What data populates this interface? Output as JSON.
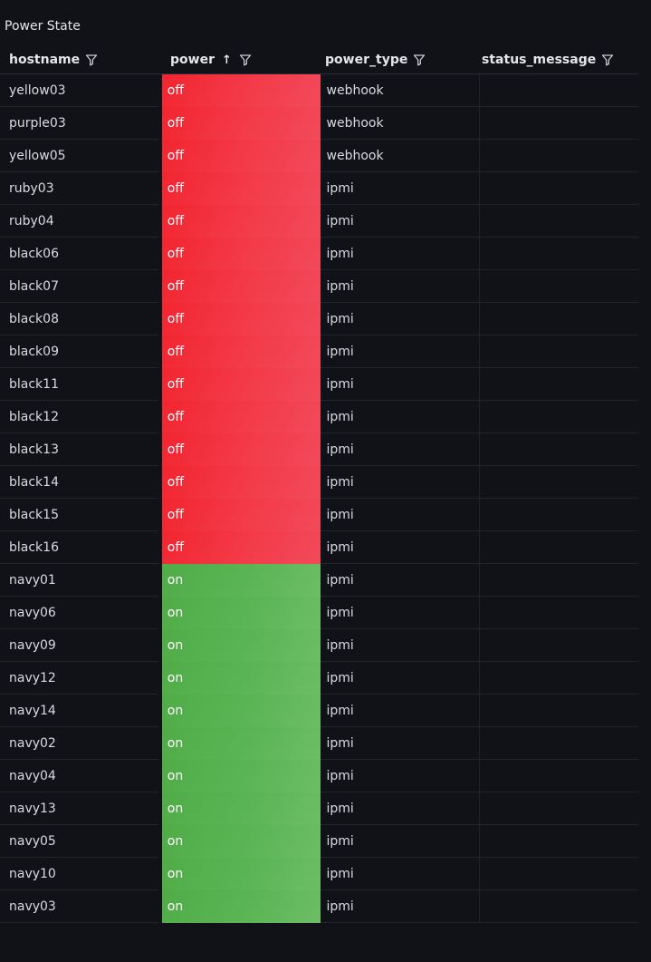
{
  "panel": {
    "title": "Power State"
  },
  "columns": [
    {
      "label": "hostname",
      "sort": ""
    },
    {
      "label": "power",
      "sort": "↑"
    },
    {
      "label": "power_type",
      "sort": ""
    },
    {
      "label": "status_message",
      "sort": ""
    }
  ],
  "colors": {
    "off": "#f2252f",
    "on": "#5bb555",
    "background": "#111217"
  },
  "rows": [
    {
      "hostname": "yellow03",
      "power": "off",
      "power_type": "webhook",
      "status_message": ""
    },
    {
      "hostname": "purple03",
      "power": "off",
      "power_type": "webhook",
      "status_message": ""
    },
    {
      "hostname": "yellow05",
      "power": "off",
      "power_type": "webhook",
      "status_message": ""
    },
    {
      "hostname": "ruby03",
      "power": "off",
      "power_type": "ipmi",
      "status_message": ""
    },
    {
      "hostname": "ruby04",
      "power": "off",
      "power_type": "ipmi",
      "status_message": ""
    },
    {
      "hostname": "black06",
      "power": "off",
      "power_type": "ipmi",
      "status_message": ""
    },
    {
      "hostname": "black07",
      "power": "off",
      "power_type": "ipmi",
      "status_message": ""
    },
    {
      "hostname": "black08",
      "power": "off",
      "power_type": "ipmi",
      "status_message": ""
    },
    {
      "hostname": "black09",
      "power": "off",
      "power_type": "ipmi",
      "status_message": ""
    },
    {
      "hostname": "black11",
      "power": "off",
      "power_type": "ipmi",
      "status_message": ""
    },
    {
      "hostname": "black12",
      "power": "off",
      "power_type": "ipmi",
      "status_message": ""
    },
    {
      "hostname": "black13",
      "power": "off",
      "power_type": "ipmi",
      "status_message": ""
    },
    {
      "hostname": "black14",
      "power": "off",
      "power_type": "ipmi",
      "status_message": ""
    },
    {
      "hostname": "black15",
      "power": "off",
      "power_type": "ipmi",
      "status_message": ""
    },
    {
      "hostname": "black16",
      "power": "off",
      "power_type": "ipmi",
      "status_message": ""
    },
    {
      "hostname": "navy01",
      "power": "on",
      "power_type": "ipmi",
      "status_message": ""
    },
    {
      "hostname": "navy06",
      "power": "on",
      "power_type": "ipmi",
      "status_message": ""
    },
    {
      "hostname": "navy09",
      "power": "on",
      "power_type": "ipmi",
      "status_message": ""
    },
    {
      "hostname": "navy12",
      "power": "on",
      "power_type": "ipmi",
      "status_message": ""
    },
    {
      "hostname": "navy14",
      "power": "on",
      "power_type": "ipmi",
      "status_message": ""
    },
    {
      "hostname": "navy02",
      "power": "on",
      "power_type": "ipmi",
      "status_message": ""
    },
    {
      "hostname": "navy04",
      "power": "on",
      "power_type": "ipmi",
      "status_message": ""
    },
    {
      "hostname": "navy13",
      "power": "on",
      "power_type": "ipmi",
      "status_message": ""
    },
    {
      "hostname": "navy05",
      "power": "on",
      "power_type": "ipmi",
      "status_message": ""
    },
    {
      "hostname": "navy10",
      "power": "on",
      "power_type": "ipmi",
      "status_message": ""
    },
    {
      "hostname": "navy03",
      "power": "on",
      "power_type": "ipmi",
      "status_message": ""
    }
  ]
}
